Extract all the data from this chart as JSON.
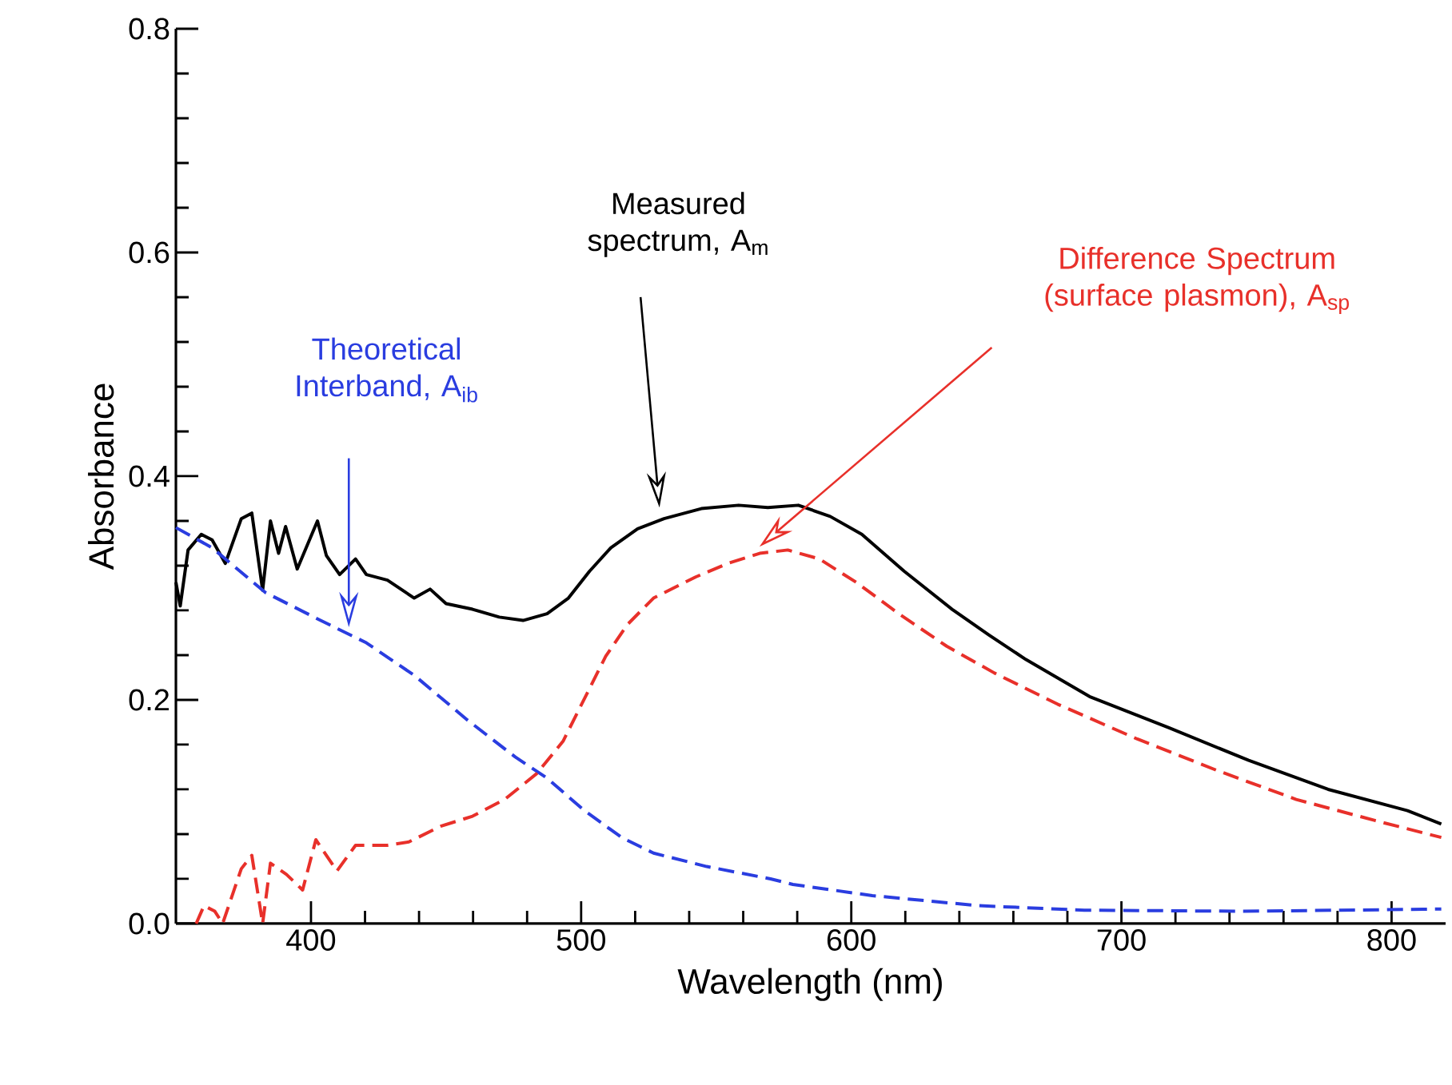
{
  "chart_data": {
    "type": "line",
    "xlabel": "Wavelength (nm)",
    "ylabel": "Absorbance",
    "xlim": [
      350,
      820
    ],
    "ylim": [
      0,
      0.8
    ],
    "xticks": [
      400,
      500,
      600,
      700,
      800
    ],
    "yticks": [
      {
        "value": 0,
        "label": "0.0"
      },
      {
        "value": 0.2,
        "label": "0.2"
      },
      {
        "value": 0.4,
        "label": "0.4"
      },
      {
        "value": 0.6,
        "label": "0.6"
      },
      {
        "value": 0.8,
        "label": "0.8"
      }
    ],
    "series": [
      {
        "color": "#000000",
        "line_style": "solid",
        "x": [
          350,
          351.6,
          354.5,
          359.4,
          363.4,
          368.3,
          374.2,
          378.1,
          382.1,
          385,
          388,
          390.6,
          394.9,
          402.4,
          405.7,
          410.6,
          416.5,
          420.5,
          428.3,
          438.2,
          444.1,
          450,
          459.8,
          469.7,
          478.5,
          487.4,
          495.3,
          503.1,
          511,
          520.9,
          530.7,
          544.5,
          558.3,
          569.1,
          580.4,
          592.2,
          603.9,
          619.6,
          637.3,
          651,
          664.7,
          688.2,
          717.6,
          747.1,
          776.5,
          805.9,
          818.4
        ],
        "values": [
          0.305,
          0.284,
          0.334,
          0.348,
          0.343,
          0.322,
          0.362,
          0.367,
          0.298,
          0.36,
          0.331,
          0.355,
          0.317,
          0.36,
          0.329,
          0.312,
          0.326,
          0.312,
          0.307,
          0.291,
          0.299,
          0.286,
          0.281,
          0.274,
          0.271,
          0.277,
          0.291,
          0.315,
          0.336,
          0.353,
          0.362,
          0.371,
          0.374,
          0.372,
          0.374,
          0.364,
          0.348,
          0.315,
          0.281,
          0.258,
          0.236,
          0.203,
          0.175,
          0.146,
          0.12,
          0.101,
          0.089
        ]
      },
      {
        "color": "#2a3de0",
        "line_style": "dashed",
        "x": [
          350,
          363.4,
          383.1,
          402.8,
          420.5,
          438.2,
          457.9,
          475.6,
          487.4,
          501.2,
          515,
          526.8,
          546.5,
          570.1,
          578.4,
          607.8,
          647.1,
          686.3,
          745.1,
          818.4
        ],
        "values": [
          0.354,
          0.336,
          0.296,
          0.272,
          0.251,
          0.222,
          0.182,
          0.149,
          0.13,
          0.101,
          0.077,
          0.063,
          0.051,
          0.04,
          0.035,
          0.025,
          0.016,
          0.012,
          0.011,
          0.013
        ]
      },
      {
        "color": "#e8302a",
        "line_style": "dashed",
        "x": [
          357.5,
          360.4,
          364.4,
          367.3,
          374.2,
          378.1,
          382.1,
          385,
          390.9,
          396.9,
          401.8,
          409.6,
          416.5,
          428.3,
          436.2,
          448,
          459.8,
          471.7,
          483.5,
          493.3,
          501.2,
          509.1,
          517,
          526.8,
          542.5,
          554.3,
          566.1,
          576.5,
          588.2,
          601.9,
          617.6,
          635.3,
          653,
          676.5,
          705.9,
          735.3,
          764.7,
          794.1,
          818.4
        ],
        "values": [
          0,
          0.016,
          0.011,
          0,
          0.049,
          0.061,
          0,
          0.054,
          0.044,
          0.03,
          0.075,
          0.047,
          0.07,
          0.07,
          0.073,
          0.087,
          0.096,
          0.111,
          0.134,
          0.163,
          0.201,
          0.239,
          0.267,
          0.291,
          0.31,
          0.322,
          0.331,
          0.334,
          0.326,
          0.305,
          0.277,
          0.248,
          0.224,
          0.196,
          0.165,
          0.137,
          0.111,
          0.092,
          0.077
        ]
      }
    ],
    "annotations": [
      "Measured spectrum, A$_{m}$",
      "Theoretical Interband, A$_{ib}$",
      "Difference Spectrum (surface plasmon), A$_{sp}$"
    ]
  }
}
